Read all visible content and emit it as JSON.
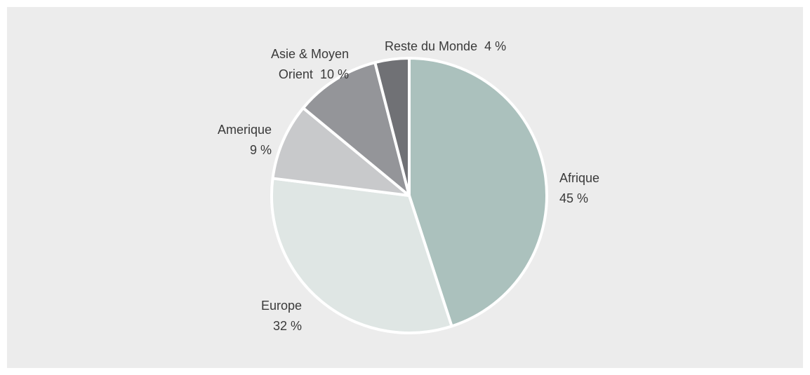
{
  "chart_data": {
    "type": "pie",
    "categories": [
      "Afrique",
      "Europe",
      "Amerique",
      "Asie & Moyen Orient",
      "Reste du Monde"
    ],
    "values": [
      45,
      32,
      9,
      10,
      4
    ],
    "value_labels": [
      "45 %",
      "32 %",
      "9 %",
      "10 %",
      "4 %"
    ],
    "colors": [
      "#abc1bd",
      "#dfe6e4",
      "#c8c9cb",
      "#949599",
      "#707175"
    ]
  }
}
